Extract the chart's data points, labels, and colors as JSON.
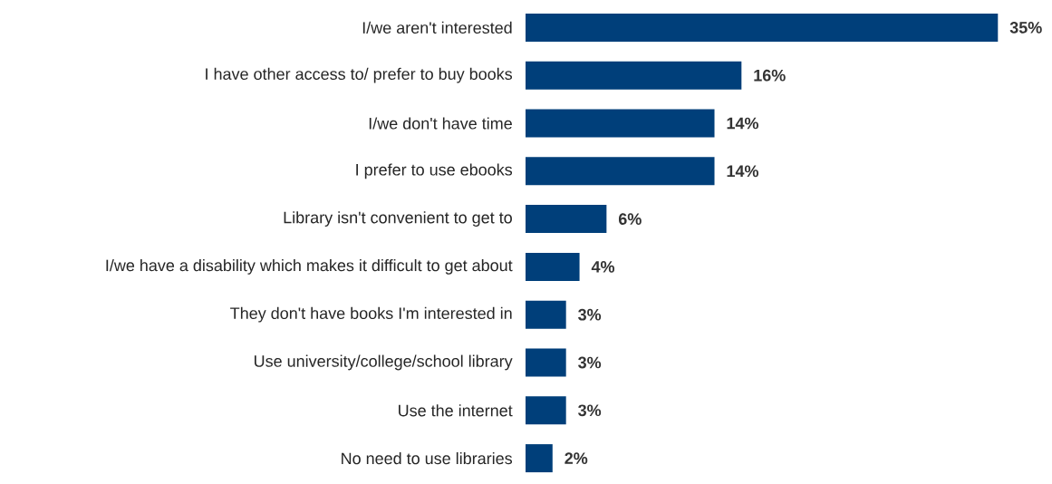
{
  "chart_data": {
    "type": "bar",
    "orientation": "horizontal",
    "color": "#003f7a",
    "categories": [
      "I/we aren't interested",
      "I have other access to/ prefer to buy books",
      "I/we don't have time",
      "I prefer to use ebooks",
      "Library isn't convenient to get to",
      "I/we have a disability which makes it difficult to get about",
      "They don't have books I'm interested in",
      "Use university/college/school library",
      "Use the internet",
      "No need to use libraries"
    ],
    "values": [
      35,
      16,
      14,
      14,
      6,
      4,
      3,
      3,
      3,
      2
    ],
    "value_labels": [
      "35%",
      "16%",
      "14%",
      "14%",
      "6%",
      "4%",
      "3%",
      "3%",
      "3%",
      "2%"
    ]
  }
}
